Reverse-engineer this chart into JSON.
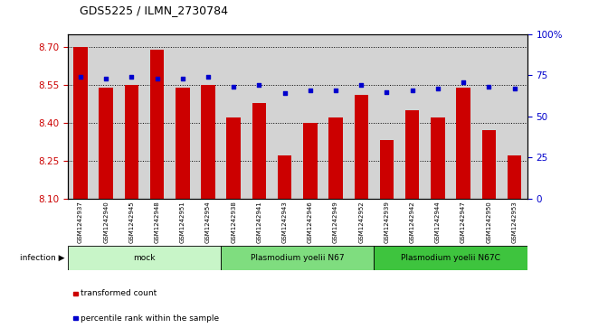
{
  "title": "GDS5225 / ILMN_2730784",
  "samples": [
    "GSM1242937",
    "GSM1242940",
    "GSM1242945",
    "GSM1242948",
    "GSM1242951",
    "GSM1242954",
    "GSM1242938",
    "GSM1242941",
    "GSM1242943",
    "GSM1242946",
    "GSM1242949",
    "GSM1242952",
    "GSM1242939",
    "GSM1242942",
    "GSM1242944",
    "GSM1242947",
    "GSM1242950",
    "GSM1242953"
  ],
  "bar_values": [
    8.7,
    8.54,
    8.55,
    8.69,
    8.54,
    8.55,
    8.42,
    8.48,
    8.27,
    8.4,
    8.42,
    8.51,
    8.33,
    8.45,
    8.42,
    8.54,
    8.37,
    8.27
  ],
  "percentile_values": [
    74,
    73,
    74,
    73,
    73,
    74,
    68,
    69,
    64,
    66,
    66,
    69,
    65,
    66,
    67,
    71,
    68,
    67
  ],
  "ymin": 8.1,
  "ymax": 8.75,
  "yticks": [
    8.1,
    8.25,
    8.4,
    8.55,
    8.7
  ],
  "pct_yticks": [
    0,
    25,
    50,
    75,
    100
  ],
  "groups": [
    {
      "label": "mock",
      "start": 0,
      "end": 6,
      "color": "#c8f5c8"
    },
    {
      "label": "Plasmodium yoelii N67",
      "start": 6,
      "end": 12,
      "color": "#7fdd7f"
    },
    {
      "label": "Plasmodium yoelii N67C",
      "start": 12,
      "end": 18,
      "color": "#3ec43e"
    }
  ],
  "bar_color": "#cc0000",
  "percentile_color": "#0000cc",
  "bar_base": 8.1,
  "infection_label": "infection",
  "legend_items": [
    {
      "label": "transformed count",
      "color": "#cc0000"
    },
    {
      "label": "percentile rank within the sample",
      "color": "#0000cc"
    }
  ],
  "tick_color_left": "#cc0000",
  "tick_color_right": "#0000cc",
  "plot_bg_color": "#d3d3d3"
}
